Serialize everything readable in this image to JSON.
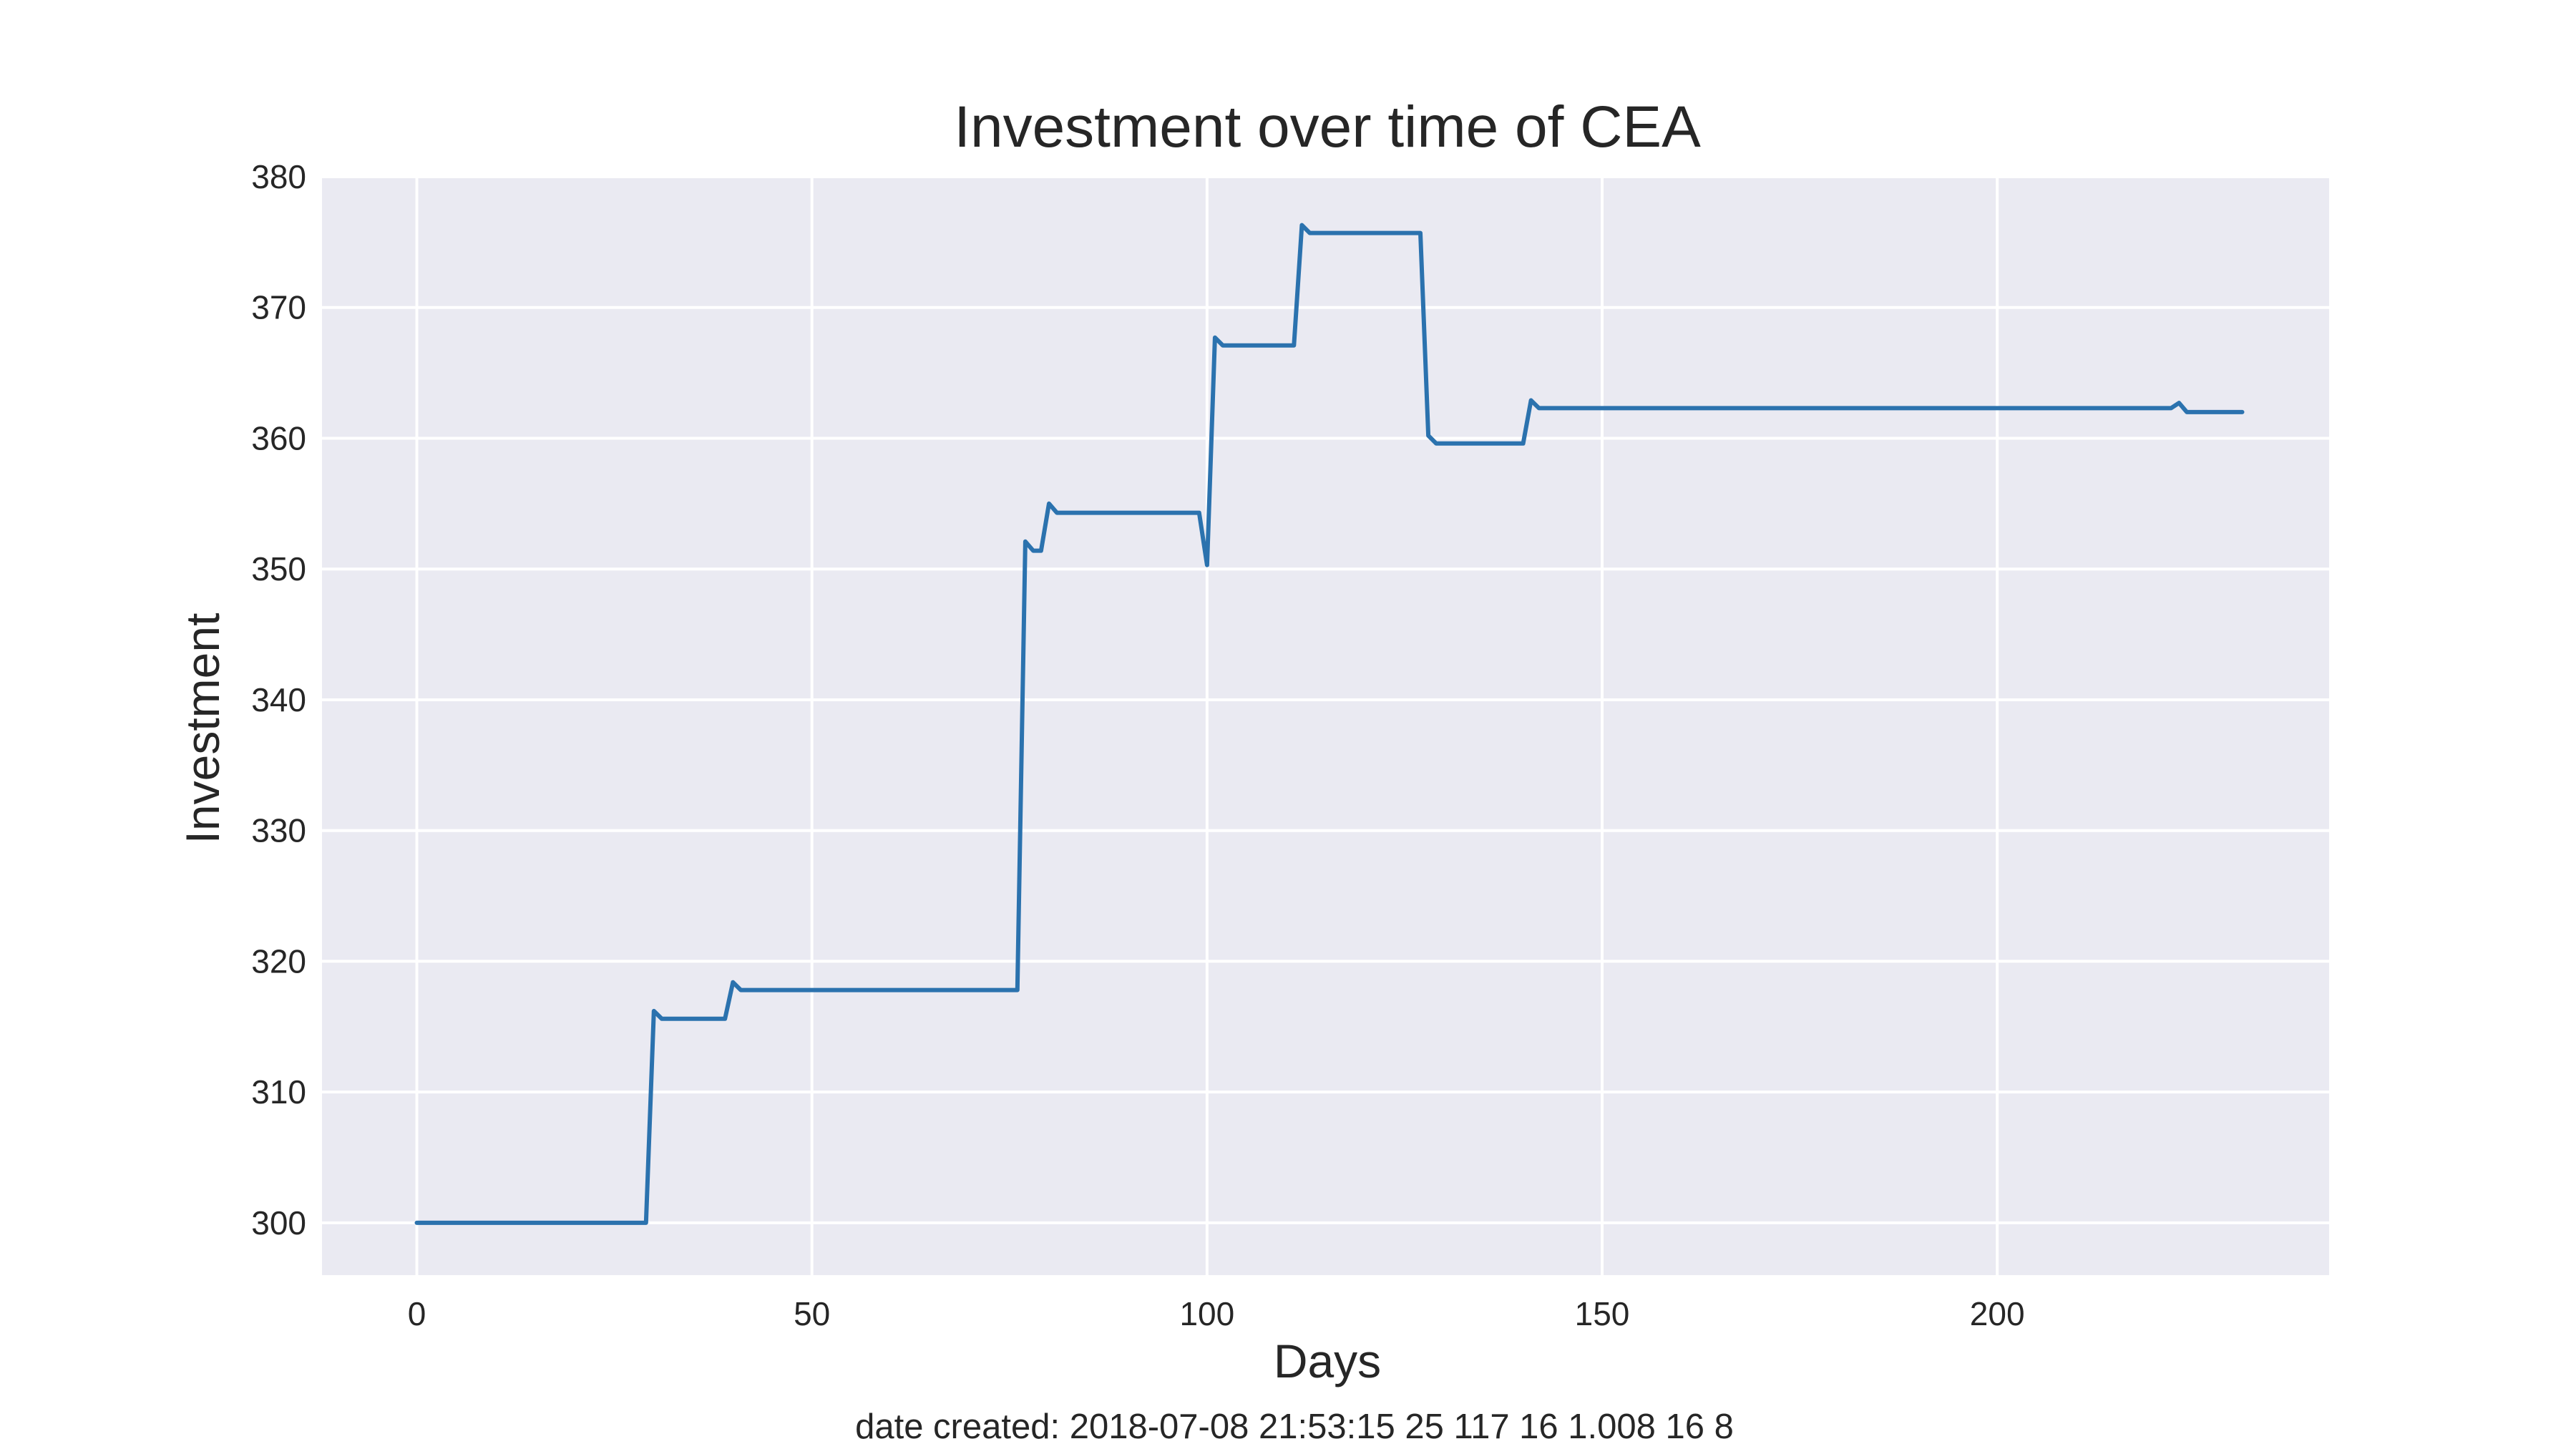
{
  "chart_data": {
    "type": "line",
    "title": "Investment over time of CEA",
    "xlabel": "Days",
    "ylabel": "Investment",
    "xlim": [
      -12,
      242
    ],
    "ylim": [
      296,
      380
    ],
    "xticks": [
      0,
      50,
      100,
      150,
      200
    ],
    "yticks": [
      300,
      310,
      320,
      330,
      340,
      350,
      360,
      370,
      380
    ],
    "grid": true,
    "legend": "none",
    "colors": {
      "line": "#2b72ae",
      "plot_background": "#eaeaf2",
      "grid": "#ffffff",
      "text": "#262626"
    },
    "series": [
      {
        "x": [
          0,
          29,
          30,
          31,
          39,
          40,
          41,
          76,
          77,
          78,
          79,
          80,
          81,
          99,
          100,
          101,
          102,
          111,
          112,
          113,
          127,
          128,
          129,
          140,
          141,
          142,
          222,
          223,
          224,
          231
        ],
        "y": [
          300.0,
          300.0,
          316.2,
          315.6,
          315.6,
          318.4,
          317.8,
          317.8,
          352.1,
          351.4,
          351.4,
          355.0,
          354.3,
          354.3,
          350.3,
          367.7,
          367.1,
          367.1,
          376.3,
          375.7,
          375.7,
          360.2,
          359.6,
          359.6,
          362.9,
          362.3,
          362.3,
          362.7,
          362.0,
          362.0
        ]
      }
    ]
  },
  "caption": "date created: 2018-07-08 21:53:15 25 117 16 1.008 16 8"
}
